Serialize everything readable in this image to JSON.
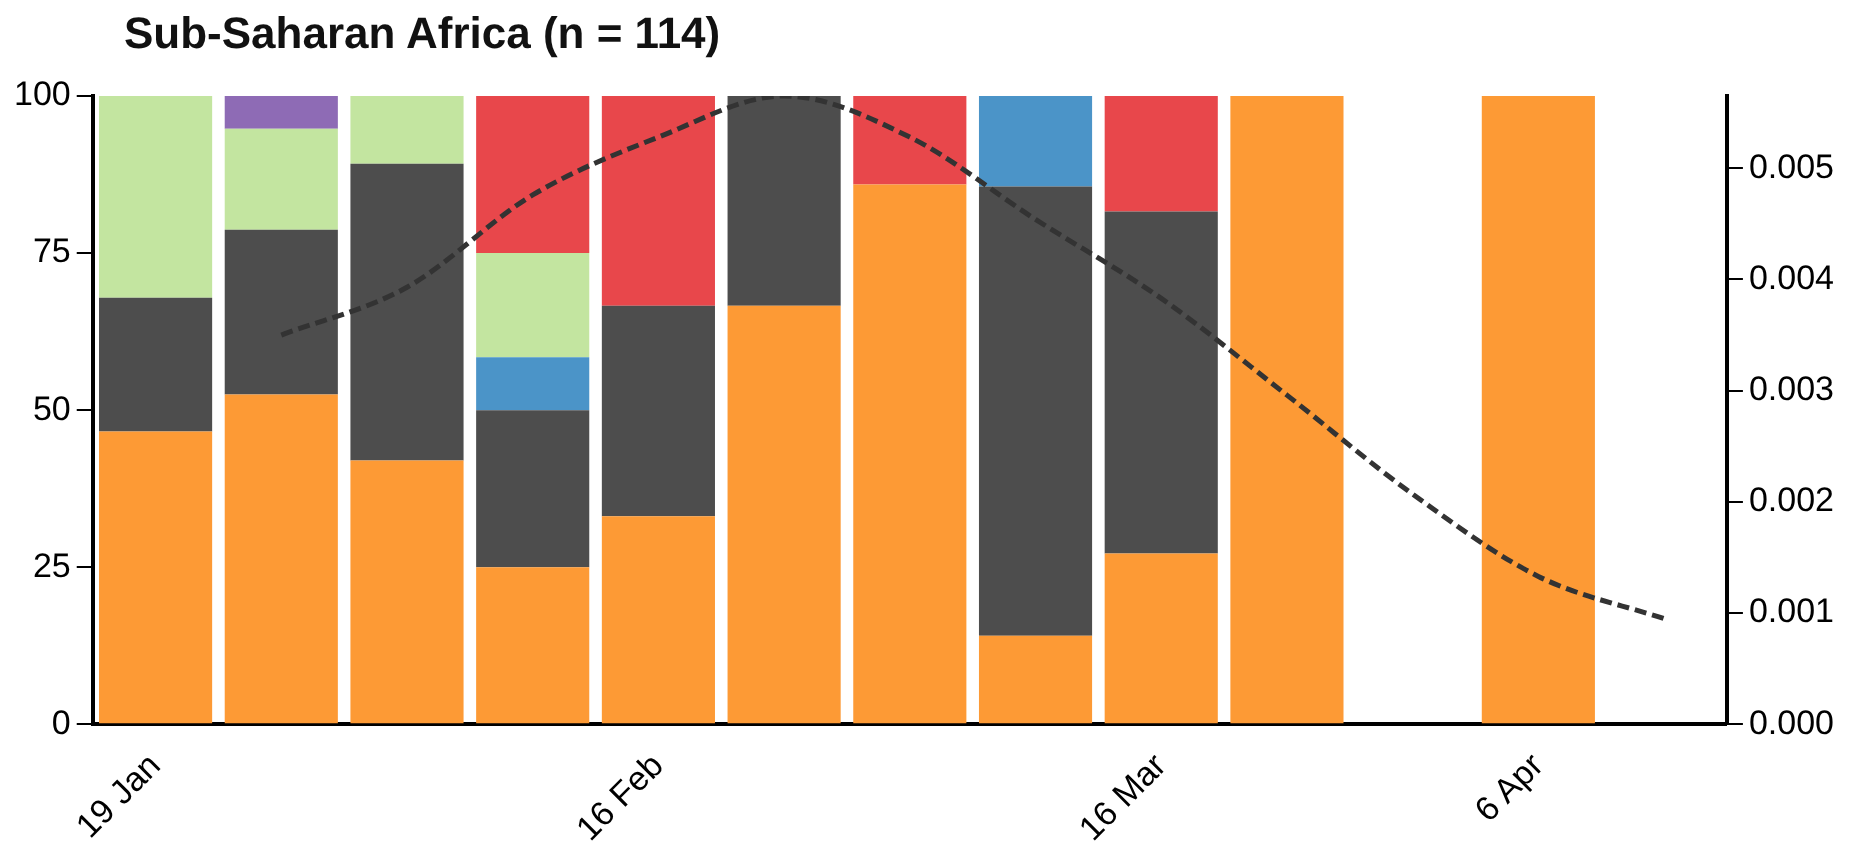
{
  "chart_data": {
    "type": "bar",
    "title": "Sub-Saharan Africa (n = 114)",
    "stacked": true,
    "grid": false,
    "legend": false,
    "categories": [
      "19 Jan",
      null,
      null,
      null,
      "16 Feb",
      null,
      null,
      null,
      "16 Mar",
      null,
      null,
      "6 Apr",
      null
    ],
    "ylim": [
      0,
      100
    ],
    "yticks": [
      0,
      25,
      50,
      75,
      100
    ],
    "y2lim": [
      0,
      0.00565
    ],
    "y2ticks": [
      {
        "value": 0,
        "label": "0.000"
      },
      {
        "value": 0.001,
        "label": "0.001"
      },
      {
        "value": 0.002,
        "label": "0.002"
      },
      {
        "value": 0.003,
        "label": "0.003"
      },
      {
        "value": 0.004,
        "label": "0.004"
      },
      {
        "value": 0.005,
        "label": "0.005"
      }
    ],
    "series": [
      {
        "color": "#fd9a35",
        "values": [
          46.6,
          52.5,
          42,
          25,
          33.1,
          66.6,
          85.9,
          14.1,
          27.2,
          100,
          null,
          100,
          null
        ]
      },
      {
        "color": "#4d4d4d",
        "values": [
          21.3,
          26.2,
          47.2,
          25,
          33.5,
          33.4,
          null,
          71.5,
          54.4,
          null,
          null,
          null,
          null
        ]
      },
      {
        "color": "#4b94c8",
        "values": [
          null,
          null,
          null,
          8.4,
          null,
          null,
          null,
          14.4,
          null,
          null,
          null,
          null,
          null
        ]
      },
      {
        "color": "#c3e5a0",
        "values": [
          32.1,
          16.1,
          10.8,
          16.6,
          null,
          null,
          null,
          null,
          null,
          null,
          null,
          null,
          null
        ]
      },
      {
        "color": "#8e6bb5",
        "values": [
          null,
          5.2,
          null,
          null,
          null,
          null,
          null,
          null,
          null,
          null,
          null,
          null,
          null
        ]
      },
      {
        "color": "#e8474b",
        "values": [
          null,
          null,
          null,
          25,
          33.4,
          null,
          14.1,
          null,
          18.4,
          null,
          null,
          null,
          null
        ]
      },
      {
        "type": "line",
        "axis": "y2",
        "color": "#333333",
        "line_style": "dashed",
        "marker": "none",
        "values": [
          null,
          0.0035,
          0.00393,
          0.00476,
          0.00528,
          0.00565,
          0.00528,
          0.00454,
          0.00383,
          0.00296,
          0.00207,
          0.00133,
          0.00095
        ]
      }
    ]
  }
}
